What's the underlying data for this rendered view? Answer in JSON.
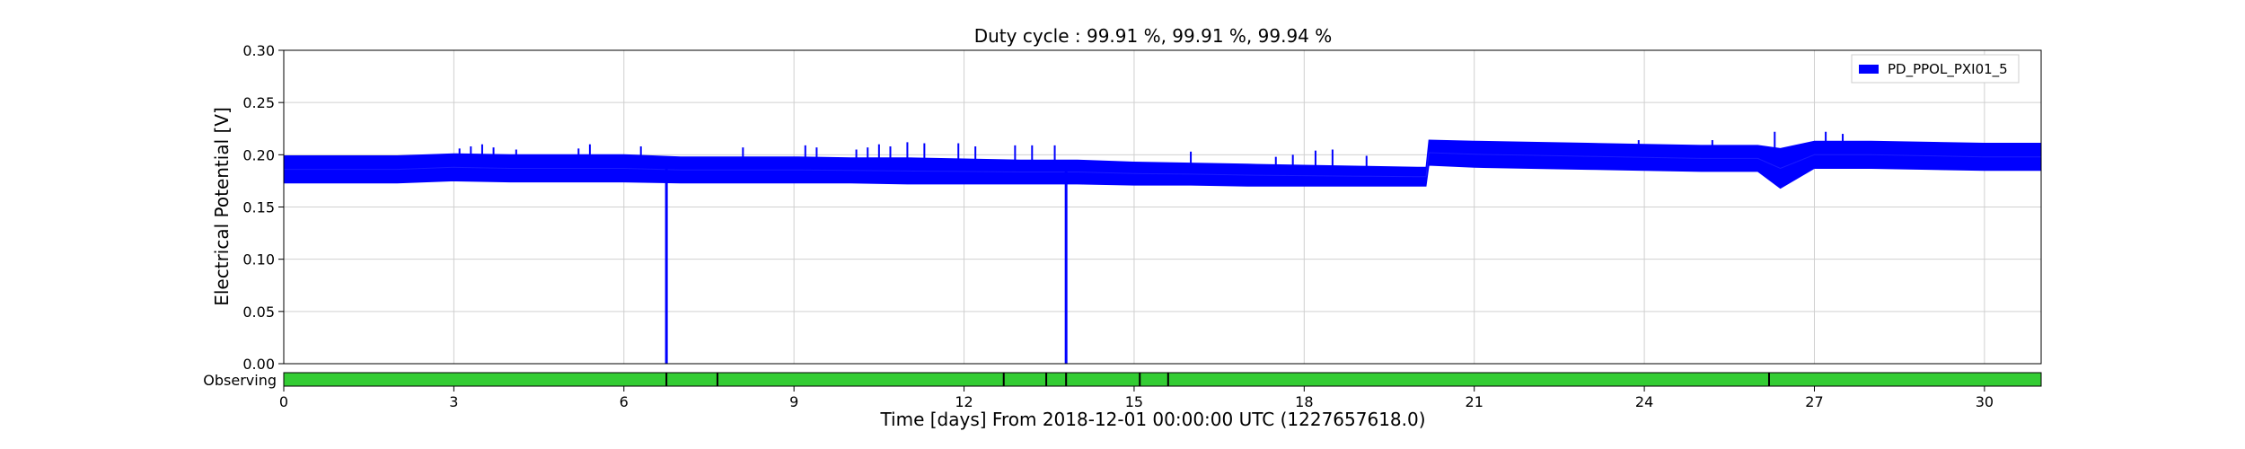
{
  "chart_data": {
    "type": "line",
    "title": "Duty cycle : 99.91 %, 99.91 %, 99.94 %",
    "xlabel": "Time [days] From 2018-12-01 00:00:00 UTC (1227657618.0)",
    "ylabel": "Electrical Potential [V]",
    "xlim": [
      0,
      31
    ],
    "ylim": [
      0,
      0.3
    ],
    "xticks": [
      0,
      3,
      6,
      9,
      12,
      15,
      18,
      21,
      24,
      27,
      30
    ],
    "xtick_labels": [
      "0",
      "3",
      "6",
      "9",
      "12",
      "15",
      "18",
      "21",
      "24",
      "27",
      "30"
    ],
    "yticks": [
      0,
      0.05,
      0.1,
      0.15,
      0.2,
      0.25,
      0.3
    ],
    "ytick_labels": [
      "0.00",
      "0.05",
      "0.10",
      "0.15",
      "0.20",
      "0.25",
      "0.30"
    ],
    "grid": true,
    "legend_position": "top-right",
    "series": [
      {
        "name": "PD_PPOL_PXI01_5",
        "color": "#0000ff",
        "band": {
          "x": [
            0,
            2,
            3,
            4,
            5,
            6,
            7,
            8,
            9,
            10,
            11,
            12,
            13,
            14,
            15,
            16,
            17,
            18,
            19,
            20,
            20.15,
            20.2,
            21,
            22,
            23,
            24,
            25,
            26,
            26.4,
            27,
            28,
            29,
            30,
            31
          ],
          "upper": [
            0.199,
            0.199,
            0.201,
            0.2,
            0.2,
            0.2,
            0.198,
            0.198,
            0.198,
            0.197,
            0.197,
            0.196,
            0.195,
            0.195,
            0.193,
            0.192,
            0.191,
            0.19,
            0.189,
            0.188,
            0.188,
            0.214,
            0.213,
            0.212,
            0.211,
            0.21,
            0.209,
            0.209,
            0.206,
            0.213,
            0.213,
            0.212,
            0.211,
            0.211
          ],
          "lower": [
            0.173,
            0.173,
            0.175,
            0.174,
            0.174,
            0.174,
            0.173,
            0.173,
            0.173,
            0.173,
            0.172,
            0.172,
            0.172,
            0.172,
            0.171,
            0.171,
            0.17,
            0.17,
            0.17,
            0.17,
            0.17,
            0.19,
            0.188,
            0.187,
            0.186,
            0.185,
            0.184,
            0.184,
            0.168,
            0.187,
            0.187,
            0.186,
            0.185,
            0.185
          ]
        },
        "spikes": [
          [
            3.1,
            0.206
          ],
          [
            3.3,
            0.208
          ],
          [
            3.5,
            0.21
          ],
          [
            3.7,
            0.207
          ],
          [
            4.1,
            0.205
          ],
          [
            5.2,
            0.206
          ],
          [
            5.4,
            0.21
          ],
          [
            6.3,
            0.208
          ],
          [
            8.1,
            0.207
          ],
          [
            9.2,
            0.209
          ],
          [
            9.4,
            0.207
          ],
          [
            10.1,
            0.205
          ],
          [
            10.3,
            0.207
          ],
          [
            10.5,
            0.21
          ],
          [
            10.7,
            0.208
          ],
          [
            11.0,
            0.212
          ],
          [
            11.3,
            0.211
          ],
          [
            11.9,
            0.211
          ],
          [
            12.2,
            0.208
          ],
          [
            12.9,
            0.209
          ],
          [
            13.2,
            0.209
          ],
          [
            13.6,
            0.209
          ],
          [
            16.0,
            0.203
          ],
          [
            17.5,
            0.198
          ],
          [
            17.8,
            0.2
          ],
          [
            18.2,
            0.204
          ],
          [
            18.5,
            0.205
          ],
          [
            19.1,
            0.199
          ],
          [
            23.9,
            0.214
          ],
          [
            25.2,
            0.214
          ],
          [
            26.3,
            0.222
          ],
          [
            27.2,
            0.222
          ],
          [
            27.5,
            0.22
          ]
        ],
        "dropouts": [
          6.75,
          13.8
        ]
      }
    ],
    "segment_panel": {
      "label": "Observing",
      "color": "#33cc33",
      "range": [
        0,
        31
      ],
      "gaps": [
        6.75,
        7.65,
        12.7,
        13.45,
        13.8,
        15.1,
        15.6,
        26.2
      ]
    }
  }
}
